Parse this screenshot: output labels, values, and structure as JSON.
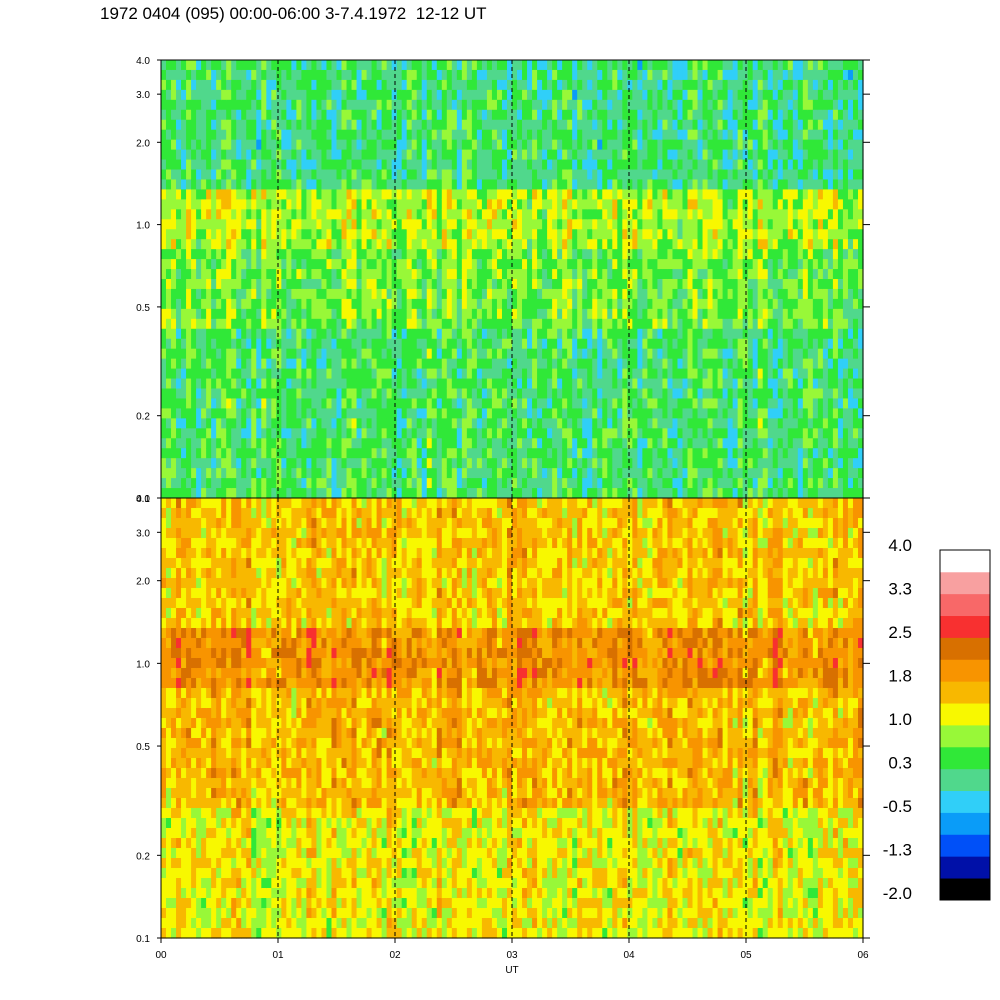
{
  "title": "1972 0404 (095) 00:00-06:00 3-7.4.1972  12-12 UT",
  "chart_data": [
    {
      "type": "heatmap",
      "panel": "upper",
      "x_label": "UT",
      "x_ticks": [
        "00",
        "01",
        "02",
        "03",
        "04",
        "05",
        "06"
      ],
      "x_range": [
        0,
        6
      ],
      "y_scale": "log",
      "y_range": [
        0.1,
        4.0
      ],
      "y_ticks": [
        "0.1",
        "0.2",
        "0.5",
        "1.0",
        "2.0",
        "3.0",
        "4.0"
      ],
      "y_tick_values": [
        0.1,
        0.2,
        0.5,
        1.0,
        2.0,
        3.0,
        4.0
      ],
      "dashed_hour_lines": [
        1,
        2,
        3,
        4,
        5
      ],
      "band_levels": [
        {
          "y_range": [
            0.1,
            0.4
          ],
          "level": 0.3
        },
        {
          "y_range": [
            0.4,
            0.8
          ],
          "level": 0.6
        },
        {
          "y_range": [
            0.8,
            1.3
          ],
          "level": 0.9
        },
        {
          "y_range": [
            1.3,
            4.0
          ],
          "level": 0.2
        }
      ]
    },
    {
      "type": "heatmap",
      "panel": "lower",
      "x_label": "UT",
      "x_ticks": [
        "00",
        "01",
        "02",
        "03",
        "04",
        "05",
        "06"
      ],
      "x_range": [
        0,
        6
      ],
      "y_scale": "log",
      "y_range": [
        0.1,
        4.0
      ],
      "y_ticks": [
        "0.1",
        "0.2",
        "0.5",
        "1.0",
        "2.0",
        "3.0",
        "4.0"
      ],
      "y_tick_values": [
        0.1,
        0.2,
        0.5,
        1.0,
        2.0,
        3.0,
        4.0
      ],
      "dashed_hour_lines": [
        1,
        2,
        3,
        4,
        5
      ],
      "band_levels": [
        {
          "y_range": [
            0.1,
            0.3
          ],
          "level": 1.2
        },
        {
          "y_range": [
            0.3,
            0.8
          ],
          "level": 1.6
        },
        {
          "y_range": [
            0.8,
            1.3
          ],
          "level": 2.0
        },
        {
          "y_range": [
            1.3,
            4.0
          ],
          "level": 1.5
        }
      ]
    }
  ],
  "colorbar": {
    "ticks": [
      "4.0",
      "3.3",
      "2.5",
      "1.8",
      "1.0",
      "0.3",
      "-0.5",
      "-1.3",
      "-2.0"
    ],
    "colors": [
      "#000000",
      "#0010a8",
      "#0050f8",
      "#0a9cf8",
      "#30cff8",
      "#50d88c",
      "#30e838",
      "#98f838",
      "#f8f800",
      "#f8b800",
      "#f89400",
      "#d87000",
      "#f83030",
      "#f86868",
      "#f8a0a0",
      "#ffffff"
    ]
  }
}
